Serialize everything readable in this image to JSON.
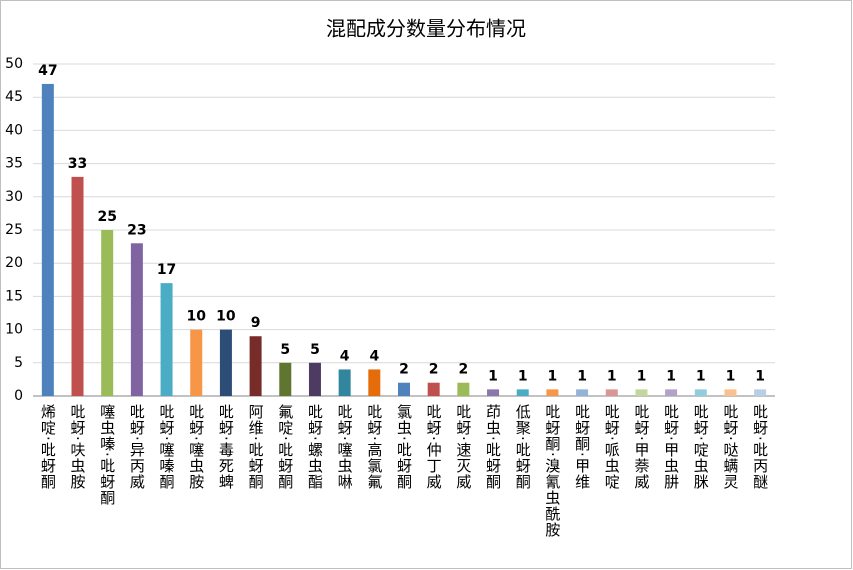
{
  "chart_data": {
    "type": "bar",
    "title": "混配成分数量分布情况",
    "categories": [
      "烯啶·吡蚜酮",
      "吡蚜·呋虫胺",
      "噻虫嗪·吡蚜酮",
      "吡蚜·异丙威",
      "吡蚜·噻嗪酮",
      "吡蚜·噻虫胺",
      "吡蚜·毒死蜱",
      "阿维·吡蚜酮",
      "氟啶·吡蚜酮",
      "吡蚜·螺虫酯",
      "吡蚜·噻虫啉",
      "吡蚜·高氯氟",
      "氯虫·吡蚜酮",
      "吡蚜·仲丁威",
      "吡蚜·速灭威",
      "茚虫·吡蚜酮",
      "低聚·吡蚜酮",
      "吡蚜酮·溴氰虫酰胺",
      "吡蚜酮·甲维",
      "吡蚜·哌虫啶",
      "吡蚜·甲萘威",
      "吡蚜·甲虫肼",
      "吡蚜·啶虫脒",
      "吡蚜·哒螨灵",
      "吡蚜·吡丙醚"
    ],
    "values": [
      47,
      33,
      25,
      23,
      17,
      10,
      10,
      9,
      5,
      5,
      4,
      4,
      2,
      2,
      2,
      1,
      1,
      1,
      1,
      1,
      1,
      1,
      1,
      1,
      1
    ],
    "colors": [
      "#4f81bd",
      "#c0504d",
      "#9bbb59",
      "#8064a2",
      "#4bacc6",
      "#f79646",
      "#2c4d75",
      "#772c2a",
      "#5f7530",
      "#4d3b62",
      "#31859c",
      "#e46c0a",
      "#4f81bd",
      "#c0504d",
      "#9bbb59",
      "#8c77ad",
      "#4bacc6",
      "#f79646",
      "#95b3d7",
      "#d99694",
      "#c3d69b",
      "#b3a2c7",
      "#93cddd",
      "#fac08f",
      "#b9cde5"
    ],
    "ylim": [
      0,
      50
    ],
    "yticks": [
      0,
      5,
      10,
      15,
      20,
      25,
      30,
      35,
      40,
      45,
      50
    ],
    "grid": true
  }
}
